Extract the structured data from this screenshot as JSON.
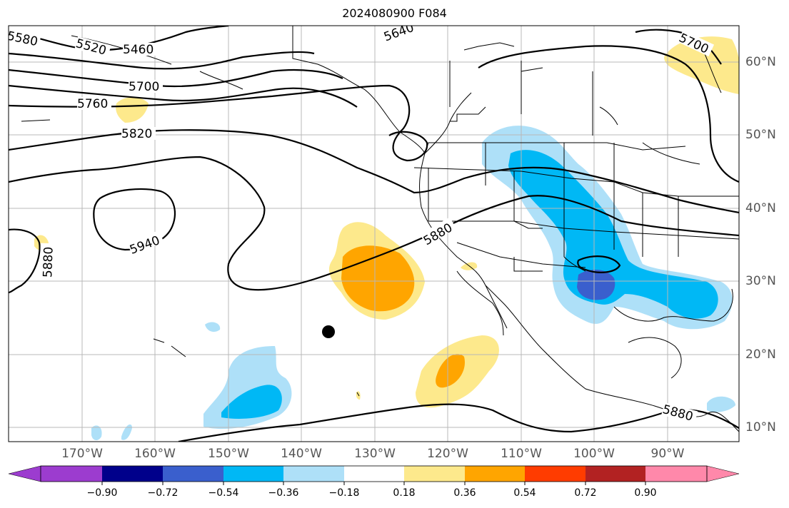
{
  "title": "2024080900 F084",
  "longitude_labels": [
    "170°W",
    "160°W",
    "150°W",
    "140°W",
    "130°W",
    "120°W",
    "110°W",
    "100°W",
    "90°W"
  ],
  "latitude_labels": [
    "60°N",
    "50°N",
    "40°N",
    "30°N",
    "20°N",
    "10°N"
  ],
  "contour_labels": [
    "5580",
    "5520",
    "5460",
    "5640",
    "5700",
    "5700",
    "5760",
    "5820",
    "5940",
    "5880",
    "5880",
    "5880"
  ],
  "colorbar": {
    "ticks": [
      "−0.90",
      "−0.72",
      "−0.54",
      "−0.36",
      "−0.18",
      "0.18",
      "0.36",
      "0.54",
      "0.72",
      "0.90"
    ],
    "colors": [
      "#9c3ccf",
      "#00008b",
      "#3a5fcd",
      "#00b8f5",
      "#aee0f8",
      "#ffffff",
      "#fde98c",
      "#ffa500",
      "#ff3c00",
      "#b22222",
      "#ff88aa"
    ]
  },
  "colors": {
    "light_blue": "#aee0f8",
    "blue": "#00b8f5",
    "dark_blue": "#3a5fcd",
    "light_yellow": "#fde98c",
    "orange": "#ffa500"
  }
}
